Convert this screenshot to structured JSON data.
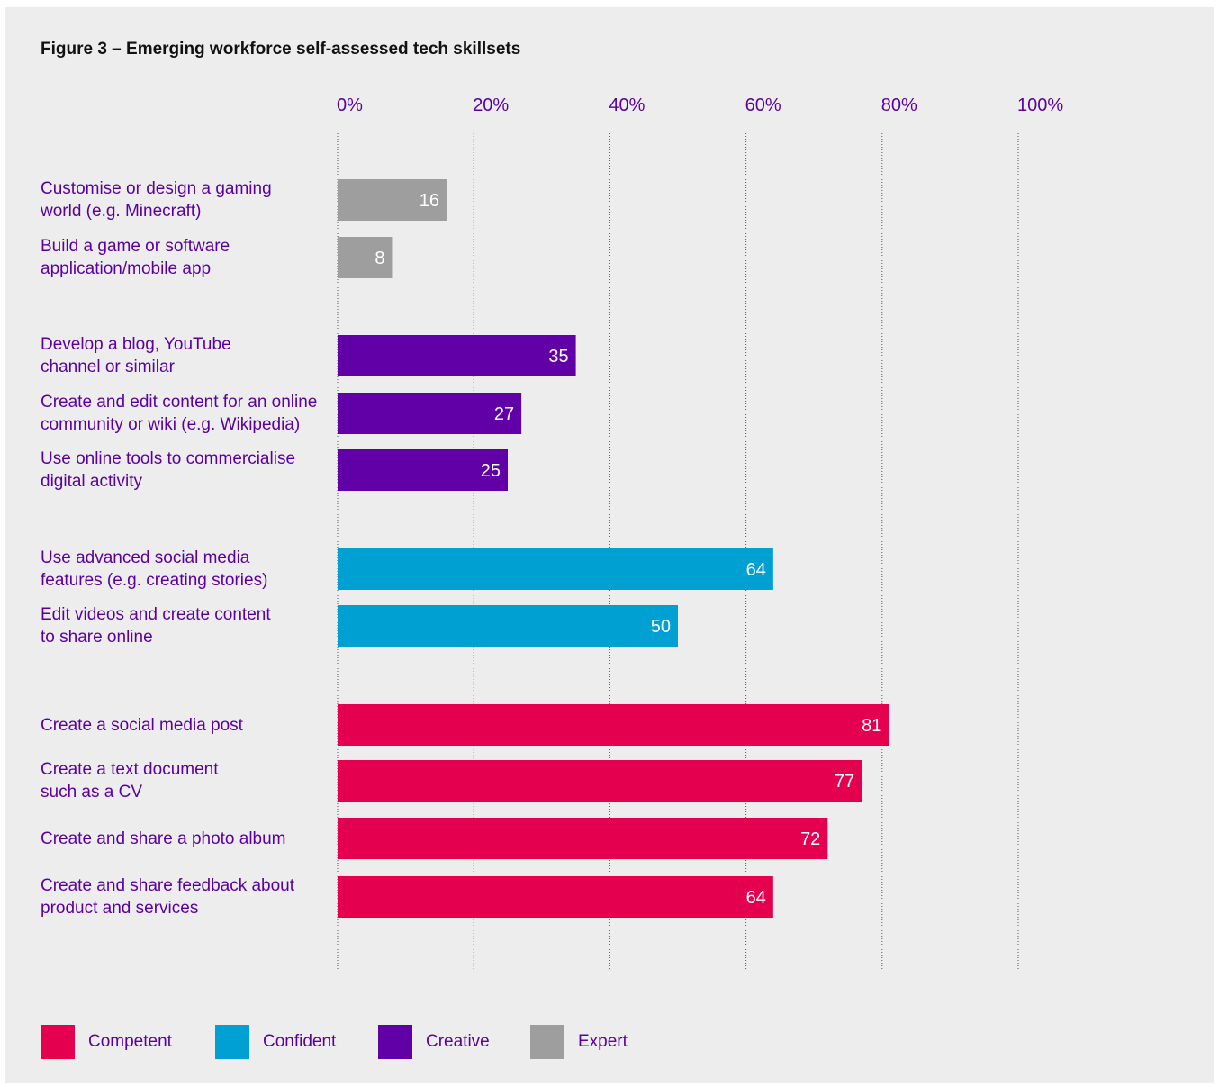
{
  "figure_title": "Figure 3 – Emerging workforce self-assessed tech skillsets",
  "colors": {
    "background": "#ededed",
    "text": "#5a00a0",
    "gridline": "#555555",
    "value_label": "#ffffff"
  },
  "chart_data": {
    "type": "bar",
    "orientation": "horizontal",
    "xlim": [
      0,
      100
    ],
    "ticks": [
      "0%",
      "20%",
      "40%",
      "60%",
      "80%",
      "100%"
    ],
    "tick_values": [
      0,
      20,
      40,
      60,
      80,
      100
    ],
    "grid": "vertical dotted",
    "categories": [
      "Customise or design a gaming\nworld (e.g. Minecraft)",
      "Build a game or software\napplication/mobile app",
      "Develop a blog, YouTube\nchannel or similar",
      "Create and edit content for an online\ncommunity or wiki (e.g. Wikipedia)",
      "Use online tools to commercialise\ndigital activity",
      "Use advanced social media\nfeatures (e.g. creating stories)",
      "Edit videos and create content\nto share online",
      "Create a social media post",
      "Create a text document\nsuch as a CV",
      "Create and share a photo album",
      "Create and share feedback about\nproduct and services"
    ],
    "values": [
      16,
      8,
      35,
      27,
      25,
      64,
      50,
      81,
      77,
      72,
      64
    ],
    "groups": [
      "Expert",
      "Expert",
      "Creative",
      "Creative",
      "Creative",
      "Confident",
      "Confident",
      "Competent",
      "Competent",
      "Competent",
      "Competent"
    ],
    "group_colors": {
      "Competent": "#e4004f",
      "Confident": "#00a0d2",
      "Creative": "#6200a8",
      "Expert": "#9e9e9e"
    },
    "legend": [
      "Competent",
      "Confident",
      "Creative",
      "Expert"
    ],
    "legend_position": "bottom-left",
    "data_labels": true
  }
}
